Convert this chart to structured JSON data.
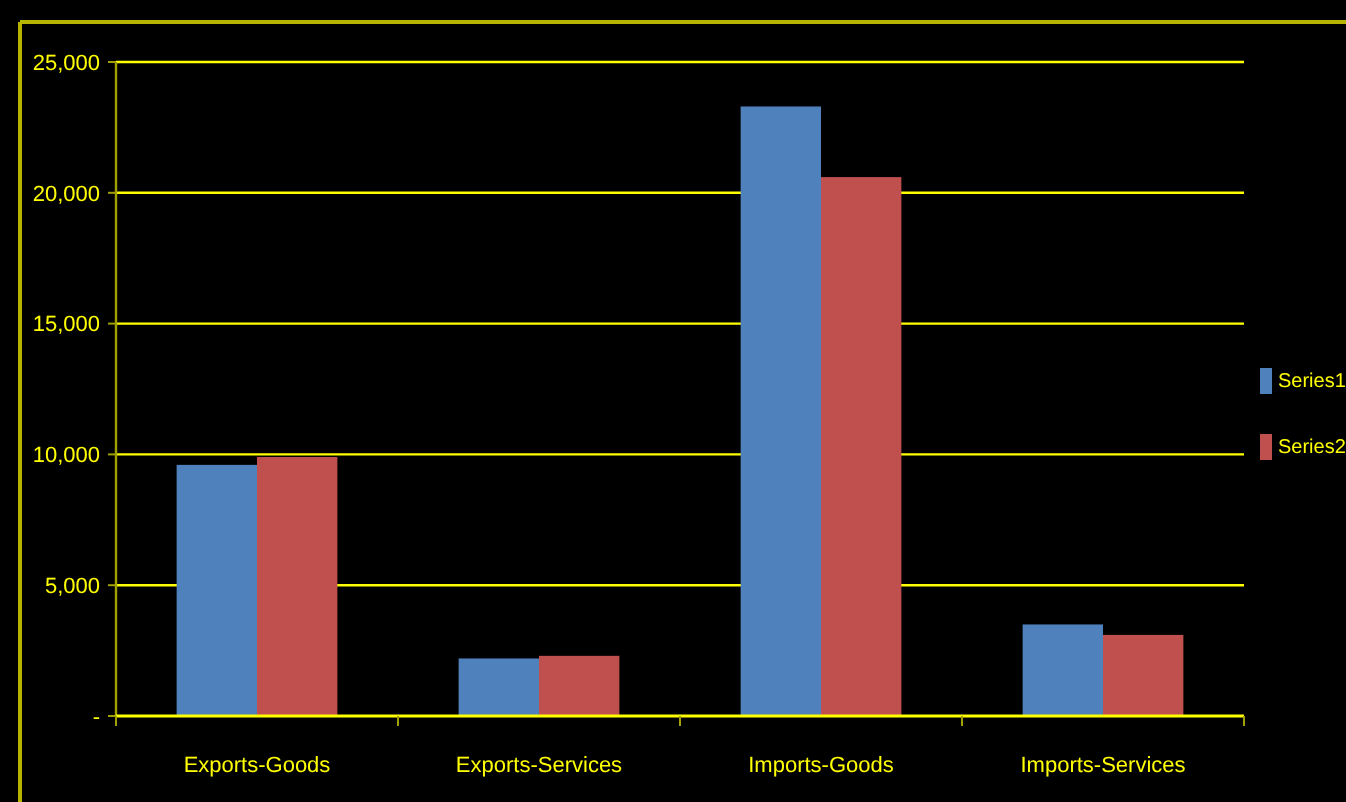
{
  "chart_data": {
    "type": "bar",
    "categories": [
      "Exports-Goods",
      "Exports-Services",
      "Imports-Goods",
      "Imports-Services"
    ],
    "series": [
      {
        "name": "Series1",
        "color": "#4f81bd",
        "values": [
          9600,
          2200,
          23300,
          3500
        ]
      },
      {
        "name": "Series2",
        "color": "#c0504d",
        "values": [
          9900,
          2300,
          20600,
          3100
        ]
      }
    ],
    "ylim": [
      0,
      25000
    ],
    "yticks": [
      {
        "value": 0,
        "label": "-"
      },
      {
        "value": 5000,
        "label": "5,000"
      },
      {
        "value": 10000,
        "label": "10,000"
      },
      {
        "value": 15000,
        "label": "15,000"
      },
      {
        "value": 20000,
        "label": "20,000"
      },
      {
        "value": 25000,
        "label": "25,000"
      }
    ],
    "grid": "y",
    "legend": "right"
  }
}
